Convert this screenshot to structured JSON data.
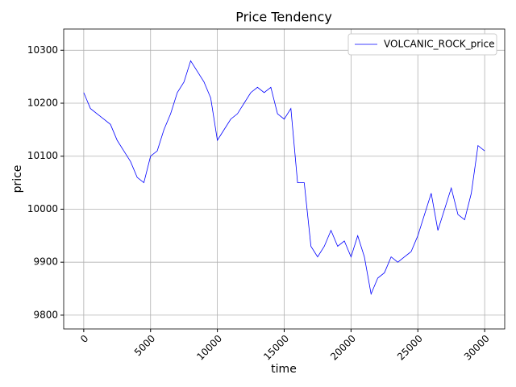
{
  "chart_data": {
    "type": "line",
    "title": "Price Tendency",
    "xlabel": "time",
    "ylabel": "price",
    "x": [
      0,
      500,
      1000,
      1500,
      2000,
      2500,
      3000,
      3500,
      4000,
      4500,
      5000,
      5500,
      6000,
      6500,
      7000,
      7500,
      8000,
      8500,
      9000,
      9500,
      10000,
      10500,
      11000,
      11500,
      12000,
      12500,
      13000,
      13500,
      14000,
      14500,
      15000,
      15500,
      16000,
      16500,
      17000,
      17500,
      18000,
      18500,
      19000,
      19500,
      20000,
      20500,
      21000,
      21500,
      22000,
      22500,
      23000,
      23500,
      24000,
      24500,
      25000,
      25500,
      26000,
      26500,
      27000,
      27500,
      28000,
      28500,
      29000,
      29500,
      30000
    ],
    "series": [
      {
        "name": "VOLCANIC_ROCK_price",
        "color": "#0000ff",
        "values": [
          10220,
          10190,
          10180,
          10170,
          10160,
          10130,
          10110,
          10090,
          10060,
          10050,
          10100,
          10110,
          10150,
          10180,
          10220,
          10240,
          10280,
          10260,
          10240,
          10210,
          10130,
          10150,
          10170,
          10180,
          10200,
          10220,
          10230,
          10220,
          10230,
          10180,
          10170,
          10190,
          10050,
          10050,
          9930,
          9910,
          9930,
          9960,
          9930,
          9940,
          9910,
          9950,
          9910,
          9840,
          9870,
          9880,
          9910,
          9900,
          9910,
          9920,
          9950,
          9990,
          10030,
          9960,
          10000,
          10040,
          9990,
          9980,
          10030,
          10120,
          10110
        ]
      }
    ],
    "xlim": [
      -1500,
      31500
    ],
    "xticks": [
      0,
      5000,
      10000,
      15000,
      20000,
      25000,
      30000
    ],
    "ylim": [
      9774,
      10340
    ],
    "yticks": [
      9800,
      9900,
      10000,
      10100,
      10200,
      10300
    ],
    "grid": true,
    "legend": "upper right"
  }
}
